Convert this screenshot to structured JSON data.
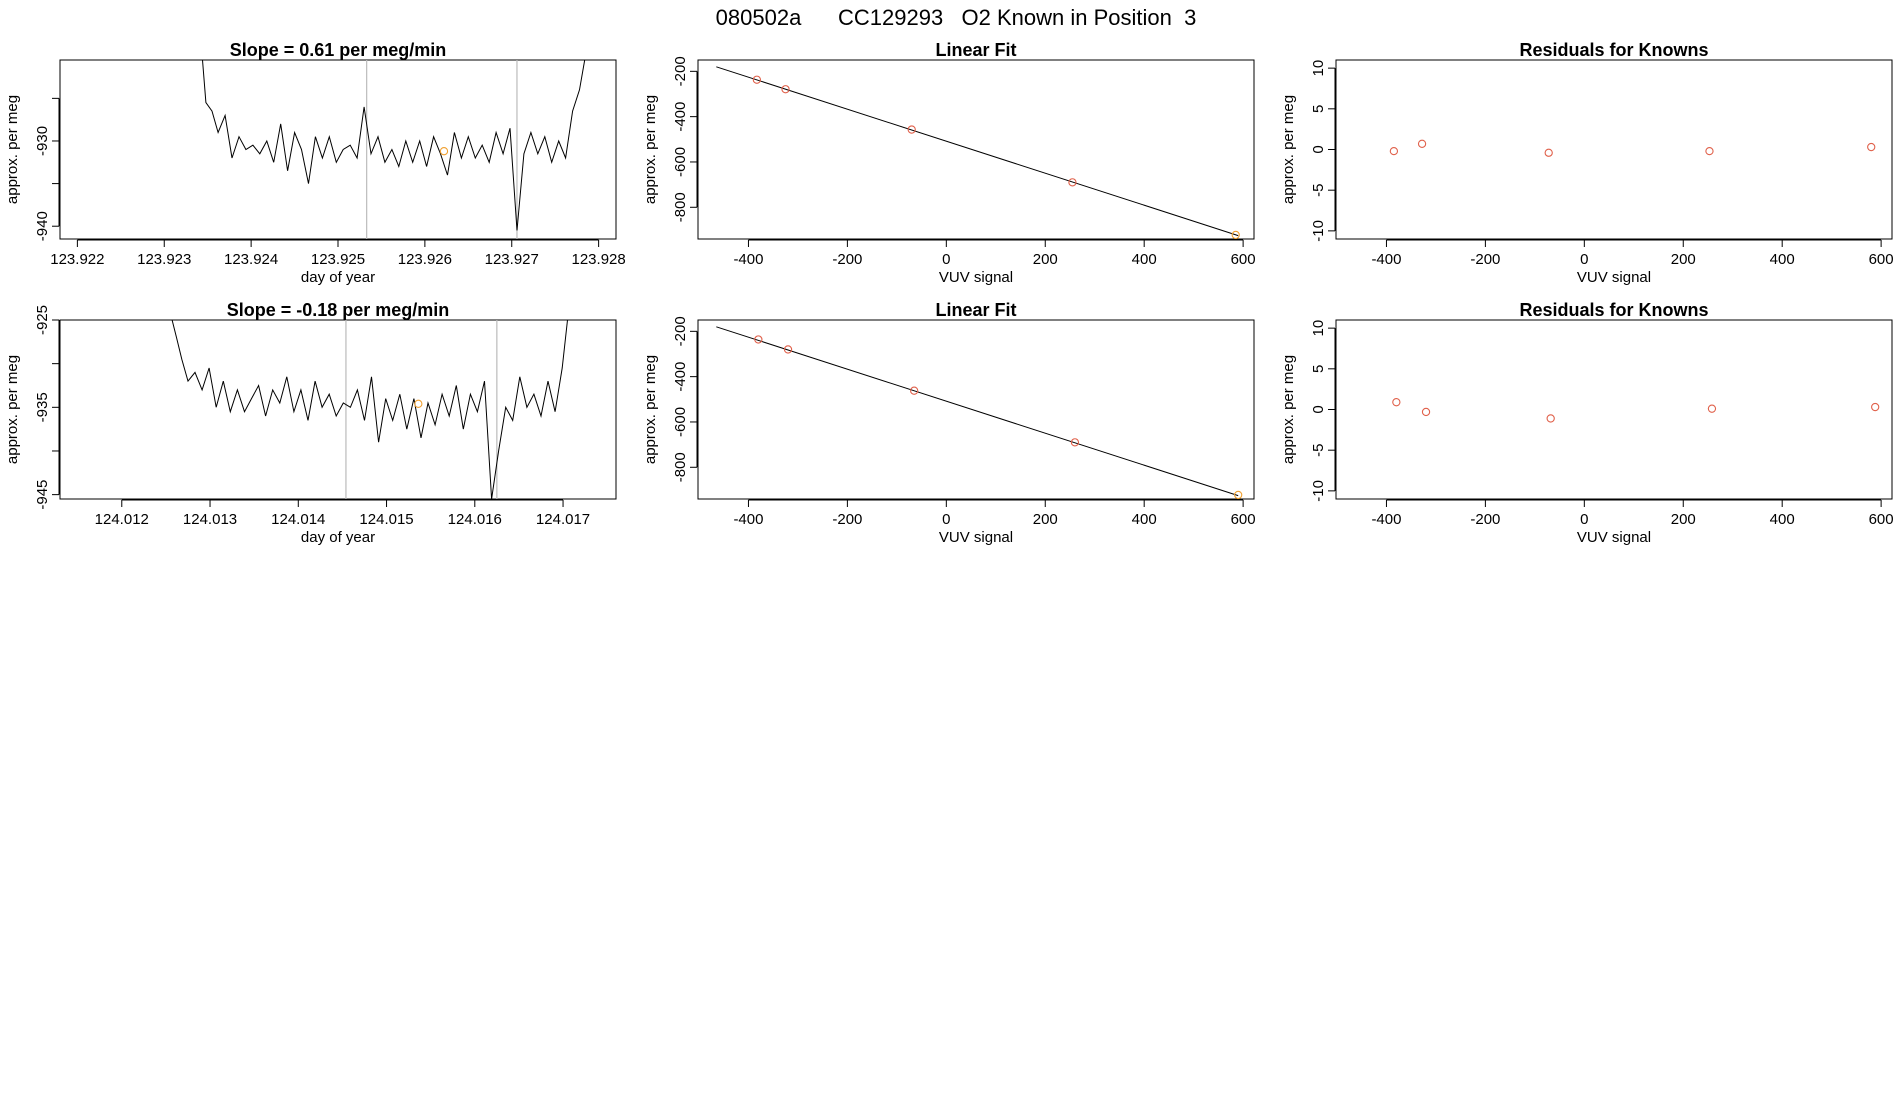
{
  "title": "080502a      CC129293   O2 Known in Position  3",
  "colors": {
    "line": "#000000",
    "point": "#e0604a",
    "highlight": "#f0a030",
    "vline": "#bbbbbb"
  },
  "chart_data": [
    {
      "id": "ts1",
      "type": "line",
      "title": "Slope =  0.61  per meg/min",
      "xlabel": "day of year",
      "ylabel": "approx. per meg",
      "xlim": [
        123.9218,
        123.9282
      ],
      "ylim": [
        -941.5,
        -920.5
      ],
      "xticks": [
        123.922,
        123.923,
        123.924,
        123.925,
        123.926,
        123.927,
        123.928
      ],
      "xtick_labels": [
        "123.922",
        "123.923",
        "123.924",
        "123.925",
        "123.926",
        "123.927",
        "123.928"
      ],
      "yticks": [
        -940,
        -935,
        -930,
        -925
      ],
      "ytick_labels": [
        "-940",
        "",
        "-930",
        ""
      ],
      "grid": false,
      "vlines": [
        123.92533,
        123.92706
      ],
      "series": [
        {
          "x": [
            123.92344,
            123.92348,
            123.92355,
            123.92362,
            123.9237,
            123.92378,
            123.92386,
            123.92394,
            123.92402,
            123.9241,
            123.92418,
            123.92426,
            123.92434,
            123.92442,
            123.9245,
            123.92458,
            123.92466,
            123.92474,
            123.92482,
            123.9249,
            123.92498,
            123.92506,
            123.92514,
            123.92522,
            123.9253,
            123.92538,
            123.92546,
            123.92554,
            123.92562,
            123.9257,
            123.92578,
            123.92586,
            123.92594,
            123.92602,
            123.9261,
            123.92618,
            123.92626,
            123.92634,
            123.92642,
            123.9265,
            123.92658,
            123.92666,
            123.92674,
            123.92682,
            123.9269,
            123.92698,
            123.92706,
            123.92714,
            123.92722,
            123.9273,
            123.92738,
            123.92746,
            123.92754,
            123.92762,
            123.9277,
            123.92778,
            123.92784
          ],
          "y": [
            -920.5,
            -925.5,
            -926.5,
            -929.0,
            -927.0,
            -932.0,
            -929.5,
            -931.0,
            -930.5,
            -931.5,
            -930.0,
            -932.5,
            -928.0,
            -933.5,
            -929.0,
            -931.0,
            -935.0,
            -929.5,
            -932.0,
            -929.5,
            -932.5,
            -931.0,
            -930.5,
            -932.0,
            -926.0,
            -931.5,
            -929.5,
            -932.5,
            -931.0,
            -933.0,
            -930.0,
            -932.5,
            -930.0,
            -933.0,
            -929.5,
            -931.5,
            -934.0,
            -929.0,
            -932.0,
            -929.5,
            -932.0,
            -930.5,
            -932.5,
            -929.0,
            -931.5,
            -928.5,
            -940.5,
            -931.5,
            -929.0,
            -931.5,
            -929.5,
            -932.5,
            -930.0,
            -932.0,
            -926.5,
            -924.0,
            -920.5
          ]
        }
      ],
      "highlight_point": {
        "x": 123.92622,
        "y": -931.2
      }
    },
    {
      "id": "fit1",
      "type": "scatter",
      "title": "Linear Fit",
      "xlabel": "VUV signal",
      "ylabel": "approx. per meg",
      "xlim": [
        -502,
        622
      ],
      "ylim": [
        -940,
        -150
      ],
      "xticks": [
        -400,
        -200,
        0,
        200,
        400,
        600
      ],
      "xtick_labels": [
        "-400",
        "-200",
        "0",
        "200",
        "400",
        "600"
      ],
      "yticks": [
        -800,
        -600,
        -400,
        -200
      ],
      "ytick_labels": [
        "-800",
        "-600",
        "-400",
        "-200"
      ],
      "grid": false,
      "fit_line": {
        "x": [
          -465,
          590
        ],
        "y": [
          -180,
          -925
        ]
      },
      "points": {
        "x": [
          -383,
          -325,
          -70,
          255
        ],
        "y": [
          -237,
          -279,
          -457,
          -690
        ]
      },
      "highlight_points": {
        "x": [
          585
        ],
        "y": [
          -922
        ]
      }
    },
    {
      "id": "res1",
      "type": "scatter",
      "title": "Residuals for Knowns",
      "xlabel": "VUV signal",
      "ylabel": "approx. per meg",
      "xlim": [
        -502,
        622
      ],
      "ylim": [
        -11,
        11
      ],
      "xticks": [
        -400,
        -200,
        0,
        200,
        400,
        600
      ],
      "xtick_labels": [
        "-400",
        "-200",
        "0",
        "200",
        "400",
        "600"
      ],
      "yticks": [
        -10,
        -5,
        0,
        5,
        10
      ],
      "ytick_labels": [
        "-10",
        "-5",
        "0",
        "5",
        "10"
      ],
      "grid": false,
      "points": {
        "x": [
          -385,
          -328,
          -72,
          253,
          580
        ],
        "y": [
          -0.2,
          0.7,
          -0.4,
          -0.2,
          0.3
        ]
      }
    },
    {
      "id": "ts2",
      "type": "line",
      "title": "Slope =  -0.18  per meg/min",
      "xlabel": "day of year",
      "ylabel": "approx. per meg",
      "xlim": [
        124.0113,
        124.0176
      ],
      "ylim": [
        -945.5,
        -925.0
      ],
      "xticks": [
        124.012,
        124.013,
        124.014,
        124.015,
        124.016,
        124.017
      ],
      "xtick_labels": [
        "124.012",
        "124.013",
        "124.014",
        "124.015",
        "124.016",
        "124.017"
      ],
      "yticks": [
        -945,
        -940,
        -935,
        -930,
        -925
      ],
      "ytick_labels": [
        "-945",
        "",
        "-935",
        "",
        "-925"
      ],
      "grid": false,
      "vlines": [
        124.01454,
        124.01625
      ],
      "series": [
        {
          "x": [
            124.01257,
            124.01262,
            124.01268,
            124.01275,
            124.01283,
            124.01291,
            124.01299,
            124.01307,
            124.01315,
            124.01323,
            124.01331,
            124.01339,
            124.01347,
            124.01355,
            124.01363,
            124.01371,
            124.01379,
            124.01387,
            124.01395,
            124.01403,
            124.01411,
            124.01419,
            124.01427,
            124.01435,
            124.01443,
            124.01451,
            124.01459,
            124.01467,
            124.01475,
            124.01483,
            124.01491,
            124.01499,
            124.01507,
            124.01515,
            124.01523,
            124.01531,
            124.01539,
            124.01547,
            124.01555,
            124.01563,
            124.01571,
            124.01579,
            124.01587,
            124.01595,
            124.01603,
            124.01611,
            124.01619,
            124.01627,
            124.01635,
            124.01643,
            124.01651,
            124.01659,
            124.01667,
            124.01675,
            124.01683,
            124.01691,
            124.01699,
            124.01705
          ],
          "y": [
            -925.0,
            -927.0,
            -929.5,
            -932.0,
            -931.0,
            -933.0,
            -930.5,
            -935.0,
            -932.0,
            -935.5,
            -933.0,
            -935.5,
            -934.0,
            -932.5,
            -936.0,
            -933.0,
            -934.5,
            -931.5,
            -935.5,
            -933.0,
            -936.5,
            -932.0,
            -935.0,
            -933.5,
            -936.0,
            -934.5,
            -935.0,
            -933.0,
            -936.5,
            -931.5,
            -939.0,
            -934.0,
            -936.5,
            -933.5,
            -937.5,
            -934.0,
            -938.5,
            -934.5,
            -937.0,
            -933.5,
            -936.0,
            -932.5,
            -937.5,
            -933.5,
            -935.5,
            -932.0,
            -945.5,
            -940.0,
            -935.0,
            -936.5,
            -931.5,
            -935.0,
            -933.5,
            -936.0,
            -932.0,
            -935.5,
            -930.5,
            -925.0
          ]
        }
      ],
      "highlight_point": {
        "x": 124.01536,
        "y": -934.6
      }
    },
    {
      "id": "fit2",
      "type": "scatter",
      "title": "Linear Fit",
      "xlabel": "VUV signal",
      "ylabel": "approx. per meg",
      "xlim": [
        -502,
        622
      ],
      "ylim": [
        -940,
        -150
      ],
      "xticks": [
        -400,
        -200,
        0,
        200,
        400,
        600
      ],
      "xtick_labels": [
        "-400",
        "-200",
        "0",
        "200",
        "400",
        "600"
      ],
      "yticks": [
        -800,
        -600,
        -400,
        -200
      ],
      "ytick_labels": [
        "-800",
        "-600",
        "-400",
        "-200"
      ],
      "grid": false,
      "fit_line": {
        "x": [
          -465,
          590
        ],
        "y": [
          -180,
          -925
        ]
      },
      "points": {
        "x": [
          -380,
          -320,
          -65,
          260
        ],
        "y": [
          -236,
          -280,
          -462,
          -690
        ]
      },
      "highlight_points": {
        "x": [
          590
        ],
        "y": [
          -922
        ]
      }
    },
    {
      "id": "res2",
      "type": "scatter",
      "title": "Residuals for Knowns",
      "xlabel": "VUV signal",
      "ylabel": "approx. per meg",
      "xlim": [
        -502,
        622
      ],
      "ylim": [
        -11,
        11
      ],
      "xticks": [
        -400,
        -200,
        0,
        200,
        400,
        600
      ],
      "xtick_labels": [
        "-400",
        "-200",
        "0",
        "200",
        "400",
        "600"
      ],
      "yticks": [
        -10,
        -5,
        0,
        5,
        10
      ],
      "ytick_labels": [
        "-10",
        "-5",
        "0",
        "5",
        "10"
      ],
      "grid": false,
      "points": {
        "x": [
          -380,
          -320,
          -68,
          258,
          588
        ],
        "y": [
          0.9,
          -0.3,
          -1.1,
          0.1,
          0.3
        ]
      }
    }
  ]
}
